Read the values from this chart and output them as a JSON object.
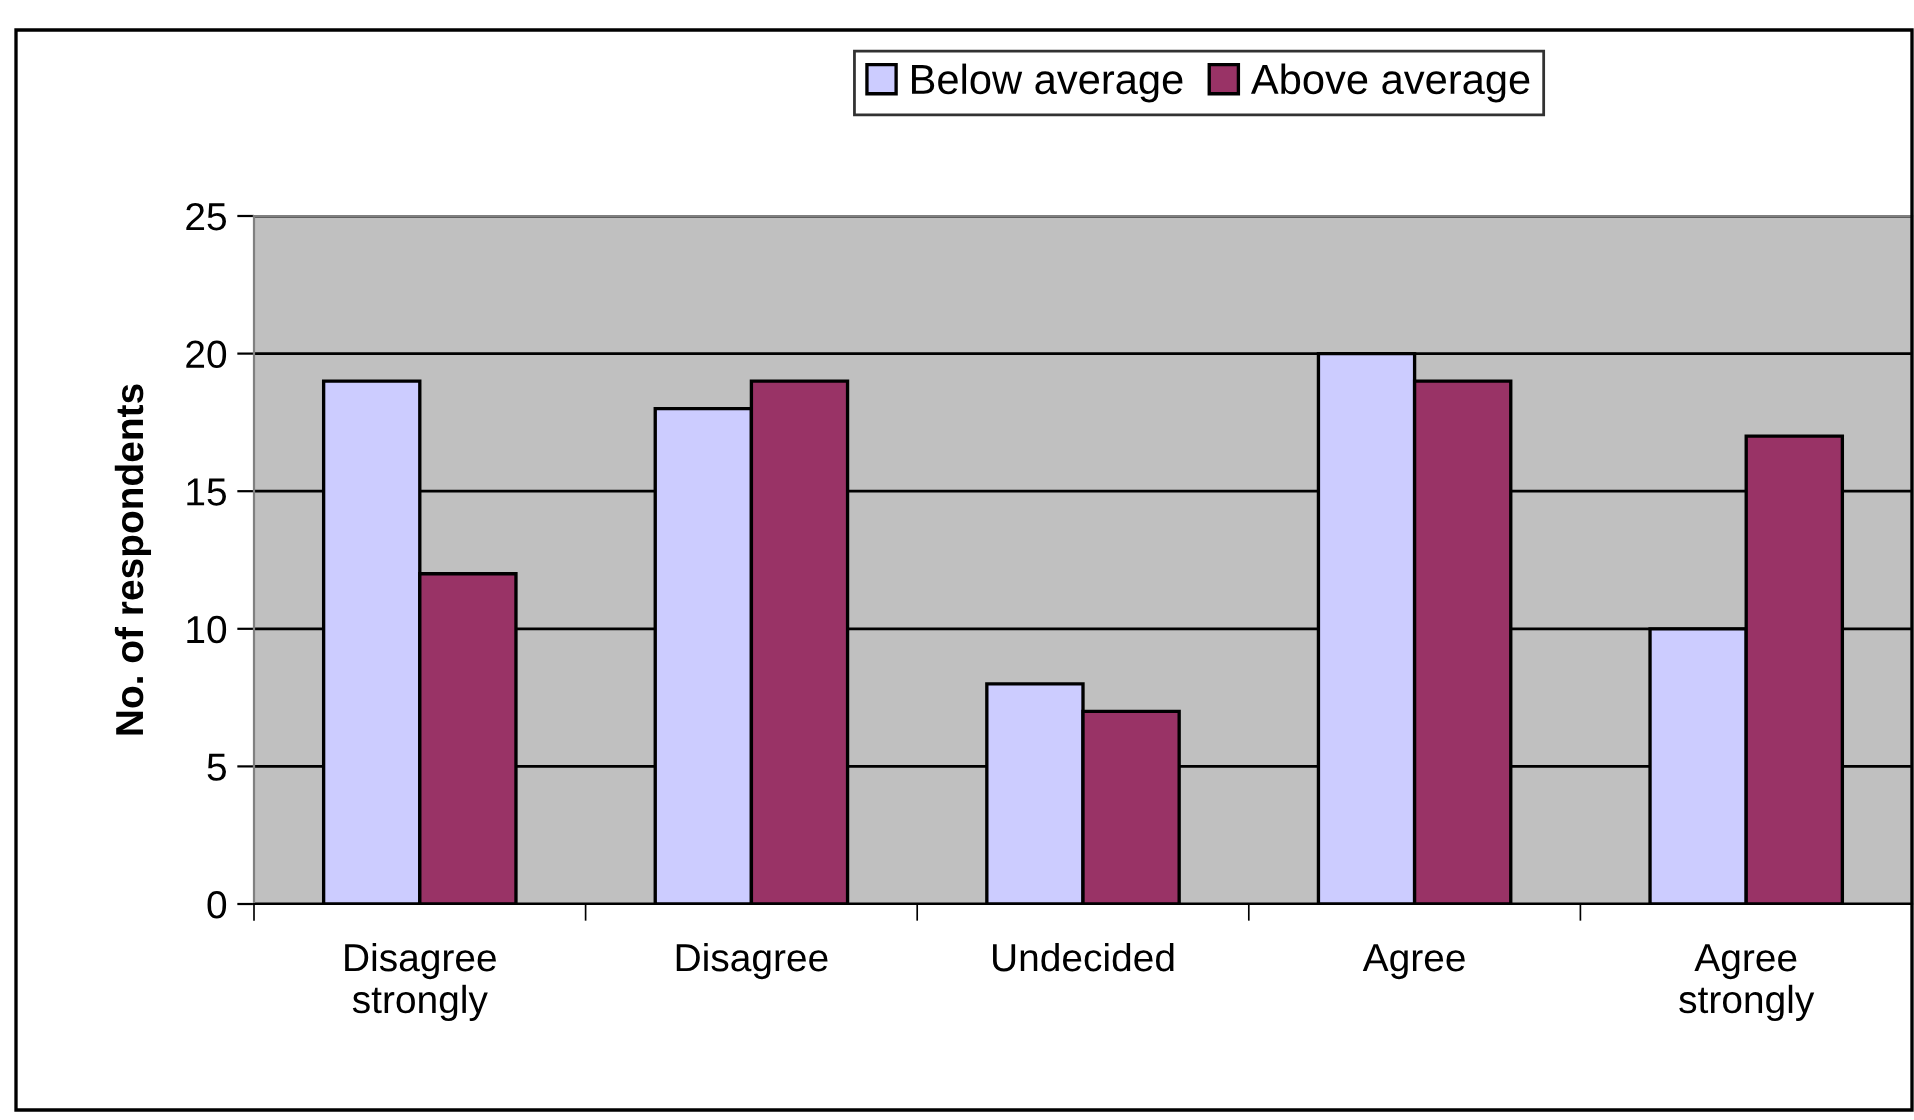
{
  "chart_data": {
    "type": "bar",
    "ylabel": "No. of respondents",
    "categories": [
      "Disagree\nstrongly",
      "Disagree",
      "Undecided",
      "Agree",
      "Agree\nstrongly"
    ],
    "series": [
      {
        "name": "Below average",
        "color": "#ccccff",
        "values": [
          19,
          18,
          8,
          20,
          10
        ]
      },
      {
        "name": "Above average",
        "color": "#993366",
        "values": [
          12,
          19,
          7,
          19,
          17
        ]
      }
    ],
    "ylim": [
      0,
      25
    ],
    "yticks": [
      0,
      5,
      10,
      15,
      20,
      25
    ],
    "grid": "y",
    "legend": "top"
  }
}
